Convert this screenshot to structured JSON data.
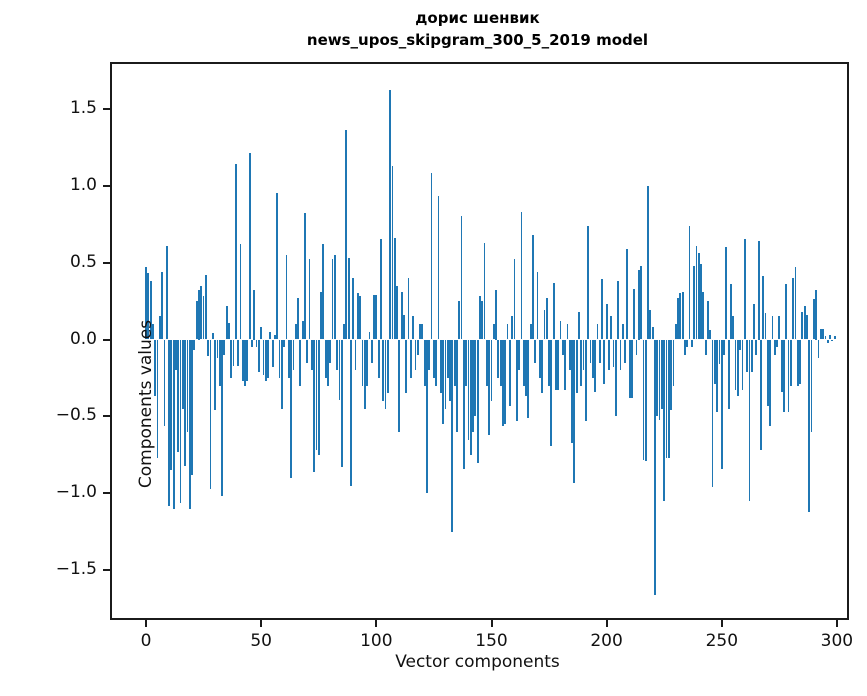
{
  "title": {
    "line1": "дорис шенвик",
    "line2": "news_upos_skipgram_300_5_2019 model"
  },
  "colors": {
    "bar": "#1f77b4",
    "axis": "#1b1b1b",
    "text": "#111111"
  },
  "chart_data": {
    "type": "bar",
    "title": "дорис шенвик",
    "subtitle": "news_upos_skipgram_300_5_2019 model",
    "xlabel": "Vector components",
    "ylabel": "Components values",
    "legend": null,
    "grid": false,
    "xlim": [
      -15,
      305
    ],
    "ylim": [
      -1.8,
      1.8
    ],
    "x_ticks": [
      0,
      50,
      100,
      150,
      200,
      250,
      300
    ],
    "y_ticks": [
      1.5,
      1.0,
      0.5,
      0.0,
      -0.5,
      -1.0,
      -1.5
    ],
    "n_components": 300,
    "values": [
      0.47,
      0.43,
      0.38,
      0.1,
      -0.37,
      -0.77,
      0.15,
      0.44,
      -0.56,
      0.61,
      -1.08,
      -0.85,
      -1.1,
      -0.2,
      -0.73,
      -1.06,
      -0.45,
      -0.82,
      -0.6,
      -1.1,
      -0.88,
      -0.07,
      0.25,
      0.32,
      0.35,
      0.28,
      0.42,
      -0.11,
      -0.97,
      0.04,
      -0.46,
      -0.12,
      -0.3,
      -1.02,
      -0.1,
      0.22,
      0.11,
      -0.25,
      -0.17,
      1.14,
      -0.17,
      0.62,
      -0.27,
      -0.3,
      -0.27,
      1.21,
      -0.05,
      0.32,
      -0.05,
      -0.21,
      0.08,
      -0.23,
      -0.27,
      -0.25,
      0.05,
      -0.18,
      0.03,
      0.95,
      -0.25,
      -0.45,
      -0.05,
      0.55,
      -0.25,
      -0.9,
      -0.2,
      0.1,
      0.27,
      -0.3,
      0.12,
      0.82,
      -0.15,
      0.52,
      -0.2,
      -0.86,
      -0.72,
      -0.75,
      0.31,
      0.62,
      -0.25,
      -0.3,
      -0.15,
      0.52,
      0.55,
      -0.2,
      -0.39,
      -0.83,
      0.1,
      1.36,
      0.53,
      -0.95,
      0.4,
      -0.2,
      0.3,
      0.28,
      -0.3,
      -0.45,
      -0.3,
      0.05,
      -0.15,
      0.29,
      0.29,
      -0.25,
      0.65,
      -0.4,
      -0.45,
      -0.35,
      1.62,
      1.13,
      0.66,
      0.35,
      -0.6,
      0.31,
      0.16,
      -0.35,
      0.4,
      -0.25,
      0.15,
      -0.2,
      -0.1,
      0.1,
      0.1,
      -0.3,
      -1.0,
      -0.2,
      1.08,
      -0.25,
      -0.3,
      0.93,
      -0.35,
      -0.55,
      -0.45,
      -0.25,
      -0.4,
      -1.25,
      -0.3,
      -0.6,
      0.25,
      0.8,
      -0.84,
      -0.3,
      -0.65,
      -0.75,
      -0.6,
      -0.5,
      -0.8,
      0.28,
      0.25,
      0.63,
      -0.3,
      -0.62,
      -0.4,
      0.1,
      0.32,
      -0.25,
      -0.3,
      -0.56,
      -0.55,
      0.1,
      -0.43,
      0.15,
      0.52,
      -0.53,
      -0.2,
      0.83,
      -0.3,
      -0.37,
      -0.51,
      0.1,
      0.68,
      -0.15,
      0.44,
      -0.25,
      -0.35,
      0.19,
      0.27,
      -0.3,
      -0.69,
      0.37,
      -0.33,
      -0.33,
      0.12,
      -0.1,
      -0.33,
      0.1,
      -0.2,
      -0.67,
      -0.93,
      -0.35,
      0.18,
      -0.3,
      -0.2,
      -0.53,
      0.74,
      -0.15,
      -0.25,
      -0.34,
      0.1,
      -0.15,
      0.39,
      -0.29,
      0.23,
      -0.2,
      0.15,
      -0.18,
      -0.5,
      0.38,
      -0.2,
      0.1,
      -0.15,
      0.59,
      -0.38,
      -0.38,
      0.33,
      -0.1,
      0.45,
      0.48,
      -0.78,
      -0.79,
      1.0,
      0.19,
      0.08,
      -1.66,
      -0.5,
      -0.52,
      -0.45,
      -1.05,
      -0.77,
      -0.77,
      -0.46,
      -0.3,
      0.1,
      0.27,
      0.3,
      0.31,
      -0.1,
      -0.05,
      0.74,
      -0.05,
      0.48,
      0.61,
      0.56,
      0.49,
      0.31,
      -0.1,
      0.25,
      0.06,
      -0.96,
      -0.29,
      -0.47,
      -0.16,
      -0.84,
      -0.1,
      0.6,
      -0.45,
      0.36,
      0.15,
      -0.33,
      -0.37,
      -0.07,
      -0.33,
      0.65,
      -0.21,
      -1.05,
      -0.21,
      0.23,
      -0.1,
      0.64,
      -0.72,
      0.41,
      0.17,
      -0.43,
      -0.56,
      0.15,
      -0.1,
      -0.05,
      0.15,
      -0.34,
      -0.47,
      0.36,
      -0.47,
      -0.3,
      0.4,
      0.47,
      -0.3,
      -0.29,
      0.18,
      0.22,
      0.16,
      -1.12,
      -0.6,
      0.26,
      0.32,
      -0.12,
      0.07,
      0.07,
      0.02,
      -0.02,
      0.03,
      -0.01,
      0.02
    ]
  }
}
